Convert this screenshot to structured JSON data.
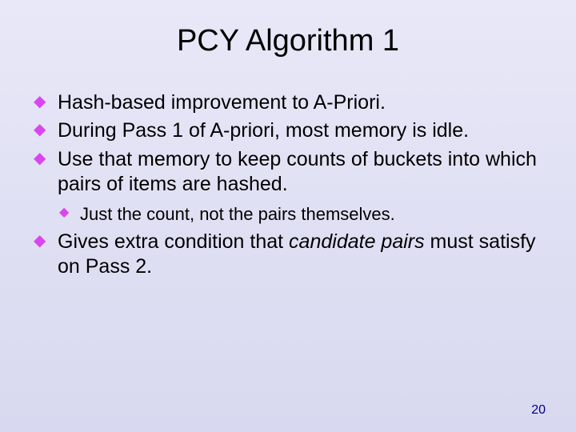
{
  "slide": {
    "title": "PCY Algorithm 1",
    "background_gradient": [
      "#e8e8f8",
      "#d8d8f0"
    ],
    "title_font": "Comic Sans MS",
    "title_fontsize": 38,
    "title_color": "#000000",
    "bullet_color": "#d946ef",
    "body_fontsize": 25,
    "sub_fontsize": 22,
    "body_color": "#000000",
    "page_number": "20",
    "page_number_color": "#000088",
    "bullets": [
      {
        "text": "Hash-based improvement to A-Priori."
      },
      {
        "text": "During Pass 1 of A-priori, most memory is idle."
      },
      {
        "text": "Use that memory to keep counts of buckets into which pairs of items are hashed.",
        "sub": [
          {
            "text": "Just the count, not the pairs themselves."
          }
        ]
      },
      {
        "prefix": "Gives extra condition that ",
        "italic": "candidate pairs",
        "suffix": " must satisfy on Pass 2."
      }
    ]
  }
}
